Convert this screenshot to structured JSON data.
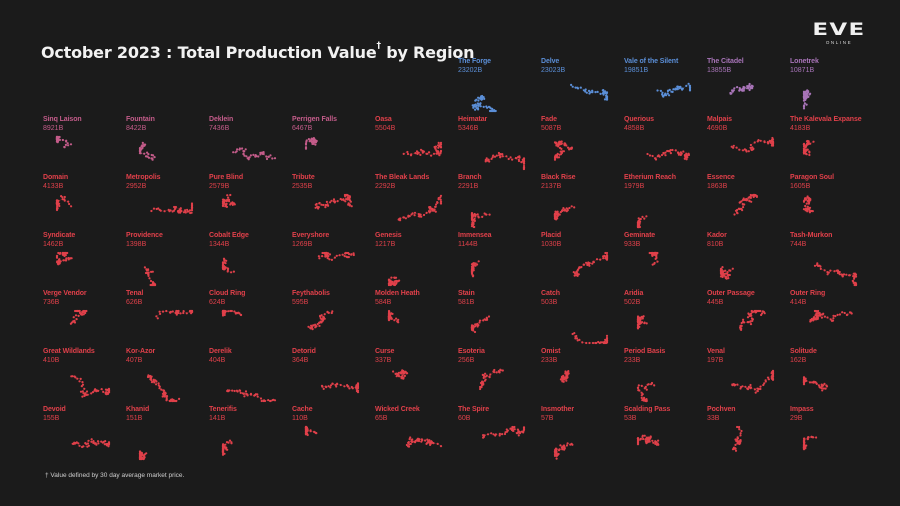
{
  "title": "October 2023 : Total Production Value",
  "title_mark": "†",
  "title_suffix": "by Region",
  "logo": {
    "mark": "EVE",
    "sub": "ONLINE"
  },
  "footnote": "† Value defined by 30 day average market price.",
  "colors": {
    "background": "#1b1b1b",
    "tier_blue": "#5b8fd8",
    "tier_purple": "#a874b8",
    "tier_magenta": "#c45c8a",
    "tier_red": "#e0404a"
  },
  "chart_data": {
    "type": "small-multiples",
    "unit": "B",
    "regions": [
      {
        "name": "The Forge",
        "value_label": "23202B",
        "value": 23202,
        "tier": "blue"
      },
      {
        "name": "Delve",
        "value_label": "23023B",
        "value": 23023,
        "tier": "blue"
      },
      {
        "name": "Vale of the Silent",
        "value_label": "19851B",
        "value": 19851,
        "tier": "blue"
      },
      {
        "name": "The Citadel",
        "value_label": "13855B",
        "value": 13855,
        "tier": "purple"
      },
      {
        "name": "Lonetrek",
        "value_label": "10871B",
        "value": 10871,
        "tier": "purple"
      },
      {
        "name": "Sinq Laison",
        "value_label": "8921B",
        "value": 8921,
        "tier": "magenta"
      },
      {
        "name": "Fountain",
        "value_label": "8422B",
        "value": 8422,
        "tier": "magenta"
      },
      {
        "name": "Deklein",
        "value_label": "7436B",
        "value": 7436,
        "tier": "magenta"
      },
      {
        "name": "Perrigen Falls",
        "value_label": "6467B",
        "value": 6467,
        "tier": "magenta"
      },
      {
        "name": "Oasa",
        "value_label": "5504B",
        "value": 5504,
        "tier": "red"
      },
      {
        "name": "Heimatar",
        "value_label": "5346B",
        "value": 5346,
        "tier": "red"
      },
      {
        "name": "Fade",
        "value_label": "5087B",
        "value": 5087,
        "tier": "red"
      },
      {
        "name": "Querious",
        "value_label": "4858B",
        "value": 4858,
        "tier": "red"
      },
      {
        "name": "Malpais",
        "value_label": "4690B",
        "value": 4690,
        "tier": "red"
      },
      {
        "name": "The Kalevala Expanse",
        "value_label": "4183B",
        "value": 4183,
        "tier": "red"
      },
      {
        "name": "Domain",
        "value_label": "4133B",
        "value": 4133,
        "tier": "red"
      },
      {
        "name": "Metropolis",
        "value_label": "2952B",
        "value": 2952,
        "tier": "red"
      },
      {
        "name": "Pure Blind",
        "value_label": "2579B",
        "value": 2579,
        "tier": "red"
      },
      {
        "name": "Tribute",
        "value_label": "2535B",
        "value": 2535,
        "tier": "red"
      },
      {
        "name": "The Bleak Lands",
        "value_label": "2292B",
        "value": 2292,
        "tier": "red"
      },
      {
        "name": "Branch",
        "value_label": "2291B",
        "value": 2291,
        "tier": "red"
      },
      {
        "name": "Black Rise",
        "value_label": "2137B",
        "value": 2137,
        "tier": "red"
      },
      {
        "name": "Etherium Reach",
        "value_label": "1979B",
        "value": 1979,
        "tier": "red"
      },
      {
        "name": "Essence",
        "value_label": "1863B",
        "value": 1863,
        "tier": "red"
      },
      {
        "name": "Paragon Soul",
        "value_label": "1605B",
        "value": 1605,
        "tier": "red"
      },
      {
        "name": "Syndicate",
        "value_label": "1462B",
        "value": 1462,
        "tier": "red"
      },
      {
        "name": "Providence",
        "value_label": "1398B",
        "value": 1398,
        "tier": "red"
      },
      {
        "name": "Cobalt Edge",
        "value_label": "1344B",
        "value": 1344,
        "tier": "red"
      },
      {
        "name": "Everyshore",
        "value_label": "1269B",
        "value": 1269,
        "tier": "red"
      },
      {
        "name": "Genesis",
        "value_label": "1217B",
        "value": 1217,
        "tier": "red"
      },
      {
        "name": "Immensea",
        "value_label": "1144B",
        "value": 1144,
        "tier": "red"
      },
      {
        "name": "Placid",
        "value_label": "1030B",
        "value": 1030,
        "tier": "red"
      },
      {
        "name": "Geminate",
        "value_label": "933B",
        "value": 933,
        "tier": "red"
      },
      {
        "name": "Kador",
        "value_label": "810B",
        "value": 810,
        "tier": "red"
      },
      {
        "name": "Tash-Murkon",
        "value_label": "744B",
        "value": 744,
        "tier": "red"
      },
      {
        "name": "Verge Vendor",
        "value_label": "736B",
        "value": 736,
        "tier": "red"
      },
      {
        "name": "Tenal",
        "value_label": "626B",
        "value": 626,
        "tier": "red"
      },
      {
        "name": "Cloud Ring",
        "value_label": "624B",
        "value": 624,
        "tier": "red"
      },
      {
        "name": "Feythabolis",
        "value_label": "595B",
        "value": 595,
        "tier": "red"
      },
      {
        "name": "Molden Heath",
        "value_label": "584B",
        "value": 584,
        "tier": "red"
      },
      {
        "name": "Stain",
        "value_label": "581B",
        "value": 581,
        "tier": "red"
      },
      {
        "name": "Catch",
        "value_label": "503B",
        "value": 503,
        "tier": "red"
      },
      {
        "name": "Aridia",
        "value_label": "502B",
        "value": 502,
        "tier": "red"
      },
      {
        "name": "Outer Passage",
        "value_label": "445B",
        "value": 445,
        "tier": "red"
      },
      {
        "name": "Outer Ring",
        "value_label": "414B",
        "value": 414,
        "tier": "red"
      },
      {
        "name": "Great Wildlands",
        "value_label": "410B",
        "value": 410,
        "tier": "red"
      },
      {
        "name": "Kor-Azor",
        "value_label": "407B",
        "value": 407,
        "tier": "red"
      },
      {
        "name": "Derelik",
        "value_label": "404B",
        "value": 404,
        "tier": "red"
      },
      {
        "name": "Detorid",
        "value_label": "364B",
        "value": 364,
        "tier": "red"
      },
      {
        "name": "Curse",
        "value_label": "337B",
        "value": 337,
        "tier": "red"
      },
      {
        "name": "Esoteria",
        "value_label": "256B",
        "value": 256,
        "tier": "red"
      },
      {
        "name": "Omist",
        "value_label": "233B",
        "value": 233,
        "tier": "red"
      },
      {
        "name": "Period Basis",
        "value_label": "233B",
        "value": 233,
        "tier": "red"
      },
      {
        "name": "Venal",
        "value_label": "197B",
        "value": 197,
        "tier": "red"
      },
      {
        "name": "Solitude",
        "value_label": "162B",
        "value": 162,
        "tier": "red"
      },
      {
        "name": "Devoid",
        "value_label": "155B",
        "value": 155,
        "tier": "red"
      },
      {
        "name": "Khanid",
        "value_label": "151B",
        "value": 151,
        "tier": "red"
      },
      {
        "name": "Tenerifis",
        "value_label": "141B",
        "value": 141,
        "tier": "red"
      },
      {
        "name": "Cache",
        "value_label": "110B",
        "value": 110,
        "tier": "red"
      },
      {
        "name": "Wicked Creek",
        "value_label": "65B",
        "value": 65,
        "tier": "red"
      },
      {
        "name": "The Spire",
        "value_label": "60B",
        "value": 60,
        "tier": "red"
      },
      {
        "name": "Insmother",
        "value_label": "57B",
        "value": 57,
        "tier": "red"
      },
      {
        "name": "Scalding Pass",
        "value_label": "53B",
        "value": 53,
        "tier": "red"
      },
      {
        "name": "Pochven",
        "value_label": "33B",
        "value": 33,
        "tier": "red"
      },
      {
        "name": "Impass",
        "value_label": "29B",
        "value": 29,
        "tier": "red"
      }
    ]
  }
}
